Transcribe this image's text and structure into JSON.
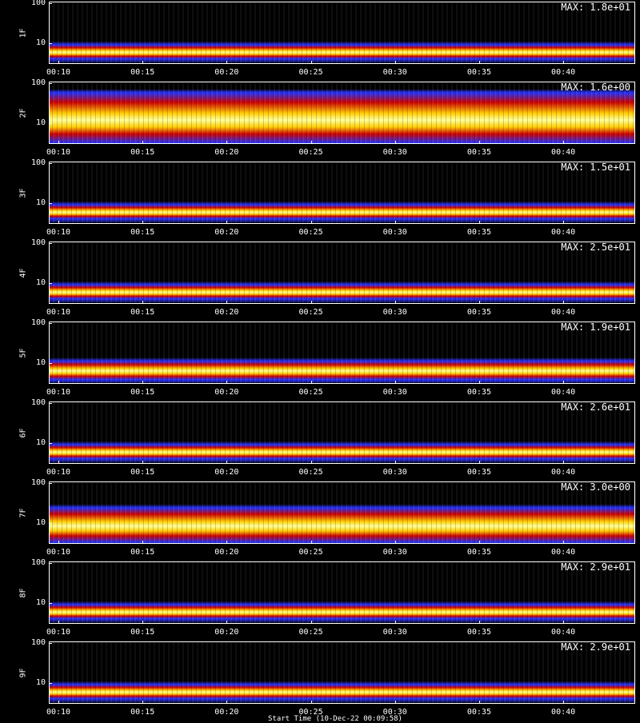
{
  "chart_data": {
    "type": "heatmap",
    "x_ticks": [
      "00:10",
      "00:15",
      "00:20",
      "00:25",
      "00:30",
      "00:35",
      "00:40"
    ],
    "y_ticks": [
      "100",
      "10"
    ],
    "y_scale": "log",
    "colormap": [
      "#000000",
      "#1a1a8c",
      "#2233ff",
      "#cc0000",
      "#ff6600",
      "#ffcc00",
      "#ffff99"
    ],
    "panels": [
      {
        "label": "1F",
        "max": "MAX: 1.8e+01",
        "band_center": 0.82,
        "band_width": 0.12,
        "intensity": 0.8
      },
      {
        "label": "2F",
        "max": "MAX: 1.6e+00",
        "band_center": 0.62,
        "band_width": 0.45,
        "intensity": 1.0
      },
      {
        "label": "3F",
        "max": "MAX: 1.5e+01",
        "band_center": 0.82,
        "band_width": 0.12,
        "intensity": 0.75
      },
      {
        "label": "4F",
        "max": "MAX: 2.5e+01",
        "band_center": 0.82,
        "band_width": 0.12,
        "intensity": 0.8
      },
      {
        "label": "5F",
        "max": "MAX: 1.9e+01",
        "band_center": 0.8,
        "band_width": 0.16,
        "intensity": 0.9
      },
      {
        "label": "6F",
        "max": "MAX: 2.6e+01",
        "band_center": 0.82,
        "band_width": 0.12,
        "intensity": 0.8
      },
      {
        "label": "7F",
        "max": "MAX: 3.0e+00",
        "band_center": 0.72,
        "band_width": 0.3,
        "intensity": 0.85
      },
      {
        "label": "8F",
        "max": "MAX: 2.9e+01",
        "band_center": 0.82,
        "band_width": 0.12,
        "intensity": 0.8
      },
      {
        "label": "9F",
        "max": "MAX: 2.9e+01",
        "band_center": 0.82,
        "band_width": 0.12,
        "intensity": 0.8
      }
    ]
  },
  "footer": "Start Time (10-Dec-22 00:09:58)"
}
